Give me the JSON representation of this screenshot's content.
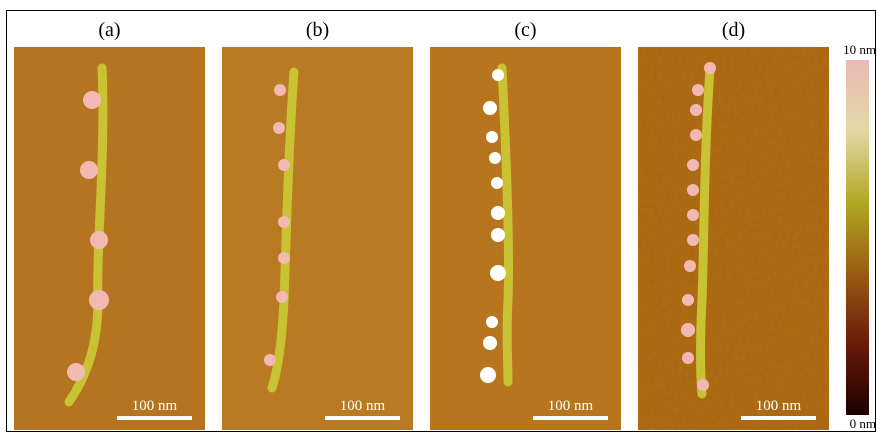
{
  "panels": [
    {
      "label": "(a)",
      "scale_bar": "100 nm"
    },
    {
      "label": "(b)",
      "scale_bar": "100 nm"
    },
    {
      "label": "(c)",
      "scale_bar": "100 nm"
    },
    {
      "label": "(d)",
      "scale_bar": "100 nm"
    }
  ],
  "colorbar": {
    "max_label": "10 nm",
    "min_label": "0 nm"
  }
}
